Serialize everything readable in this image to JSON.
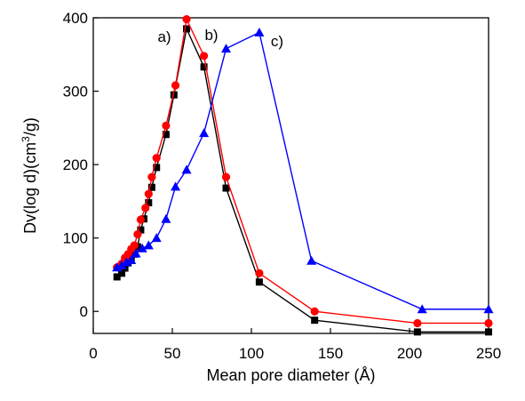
{
  "chart_data": {
    "type": "line",
    "title": "",
    "xlabel": "Mean pore diameter (Å)",
    "ylabel_prefix": "Dv(log d)(cm",
    "ylabel_sup": "3",
    "ylabel_suffix": "/g)",
    "xlim": [
      0,
      250
    ],
    "ylim": [
      -30,
      400
    ],
    "xticks": [
      0,
      50,
      100,
      150,
      200,
      250
    ],
    "yticks": [
      0,
      100,
      200,
      300,
      400
    ],
    "grid": false,
    "series": [
      {
        "name": "a)",
        "color": "#000000",
        "marker": "square",
        "x": [
          15,
          18,
          20,
          22,
          24,
          26,
          28,
          30,
          32,
          35,
          37,
          40,
          46,
          51,
          59,
          70,
          84,
          105,
          140,
          205,
          250
        ],
        "y": [
          47,
          52,
          59,
          66,
          72,
          78,
          88,
          111,
          126,
          148,
          169,
          196,
          241,
          295,
          385,
          333,
          168,
          40,
          -12,
          -28,
          -28
        ]
      },
      {
        "name": "b)",
        "color": "#ff0000",
        "marker": "circle",
        "x": [
          15,
          18,
          20,
          22,
          24,
          26,
          28,
          30,
          33,
          35,
          37,
          40,
          46,
          52,
          59,
          70,
          84,
          105,
          140,
          205,
          250
        ],
        "y": [
          60,
          65,
          73,
          78,
          85,
          90,
          105,
          125,
          141,
          160,
          183,
          209,
          253,
          308,
          398,
          348,
          183,
          52,
          0,
          -16,
          -16
        ]
      },
      {
        "name": "c)",
        "color": "#0000ff",
        "marker": "triangle",
        "x": [
          15,
          18,
          21,
          24,
          27,
          31,
          35,
          40,
          46,
          52,
          59,
          70,
          84,
          105,
          138,
          208,
          250
        ],
        "y": [
          60,
          63,
          67,
          70,
          79,
          86,
          90,
          100,
          126,
          170,
          193,
          243,
          358,
          380,
          69,
          3,
          3
        ]
      }
    ]
  }
}
